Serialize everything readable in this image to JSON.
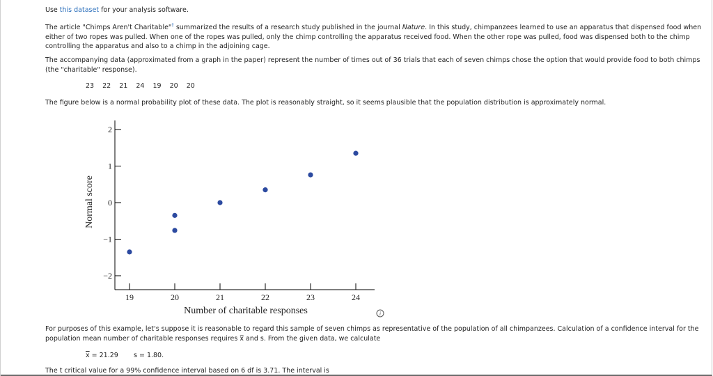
{
  "intro": {
    "prefix": "Use ",
    "link": "this dataset",
    "suffix": " for your analysis software."
  },
  "para1": {
    "a": "The article \"Chimps Aren't Charitable\"",
    "dagger": "†",
    "b": " summarized the results of a research study published in the journal ",
    "journal": "Nature",
    "c": ". In this study, chimpanzees learned to use an apparatus that dispensed food when either of two ropes was pulled. When one of the ropes was pulled, only the chimp controlling the apparatus received food. When the other rope was pulled, food was dispensed both to the chimp controlling the apparatus and also to a chimp in the adjoining cage."
  },
  "para2": "The accompanying data (approximated from a graph in the paper) represent the number of times out of 36 trials that each of seven chimps chose the option that would provide food to both chimps (the \"charitable\" response).",
  "data_values": [
    "23",
    "22",
    "21",
    "24",
    "19",
    "20",
    "20"
  ],
  "para3": "The figure below is a normal probability plot of these data. The plot is reasonably straight, so it seems plausible that the population distribution is approximately normal.",
  "info_icon": "info-icon",
  "chart_data": {
    "type": "scatter",
    "xlabel": "Number of charitable responses",
    "ylabel": "Normal score",
    "xlim": [
      18.8,
      24.4
    ],
    "ylim": [
      -2.2,
      2.2
    ],
    "x_ticks": [
      "19",
      "20",
      "21",
      "22",
      "23",
      "24"
    ],
    "y_ticks": [
      "2",
      "1",
      "0",
      "−1",
      "−2"
    ],
    "points": [
      {
        "x": 19,
        "y": -1.35
      },
      {
        "x": 20,
        "y": -0.76
      },
      {
        "x": 20,
        "y": -0.35
      },
      {
        "x": 21,
        "y": 0.0
      },
      {
        "x": 22,
        "y": 0.35
      },
      {
        "x": 23,
        "y": 0.76
      },
      {
        "x": 24,
        "y": 1.35
      }
    ],
    "point_color": "#2c4aa0"
  },
  "para4": "For purposes of this example, let's suppose it is reasonable to regard this sample of seven chimps as representative of the population of all chimpanzees. Calculation of a confidence interval for the population mean number of charitable responses requires x̅ and s. From the given data, we calculate",
  "stats": {
    "xbar_symbol": "x",
    "xbar_value": " = 21.29",
    "s_label": "s = 1.80."
  },
  "para5": "The t critical value for a 99% confidence interval based on 6 df is 3.71. The interval is"
}
